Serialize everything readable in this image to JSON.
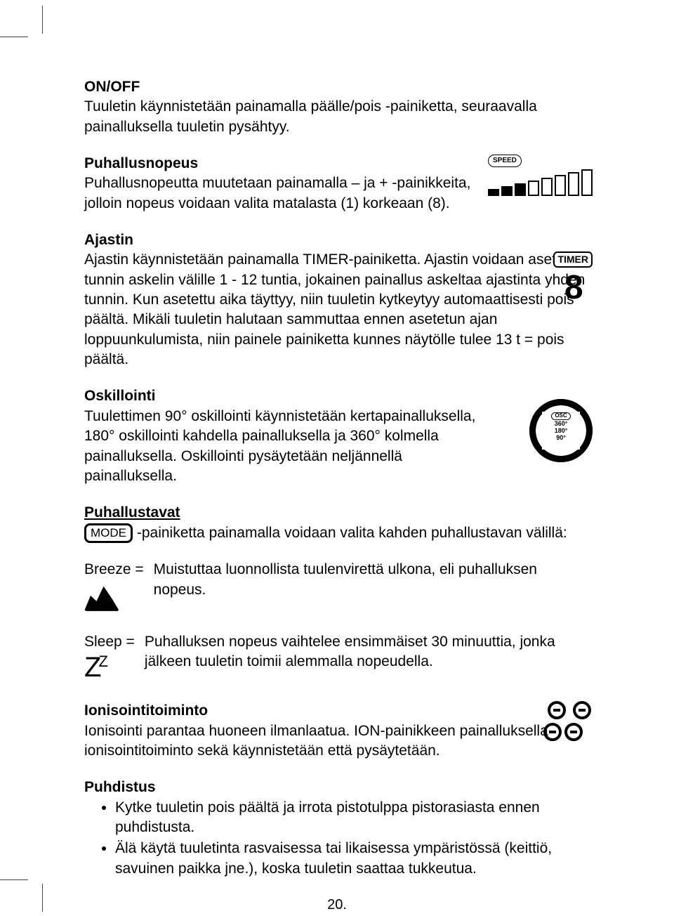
{
  "pageNumber": "20.",
  "sections": {
    "onoff": {
      "title": "ON/OFF",
      "body": "Tuuletin käynnistetään painamalla päälle/pois -painiketta, seuraavalla painalluksella tuuletin pysähtyy."
    },
    "speed": {
      "title": "Puhallusnopeus",
      "body": "Puhallusnopeutta muutetaan painamalla – ja + -painikkeita, jolloin nopeus voidaan valita matalasta (1) korkeaan (8).",
      "badge": "SPEED",
      "bars": {
        "count": 8,
        "filled": 3,
        "heights": [
          10,
          14,
          18,
          22,
          26,
          30,
          34,
          38
        ]
      }
    },
    "timer": {
      "title": "Ajastin",
      "body": "Ajastin käynnistetään painamalla TIMER-painiketta.  Ajastin voidaan asettaa tunnin askelin välille 1 - 12 tuntia, jokainen painallus askeltaa ajastinta yhden tunnin.  Kun asetettu aika täyttyy, niin tuuletin kytkeytyy automaattisesti pois päältä.  Mikäli tuuletin halutaan sammuttaa ennen asetetun ajan loppuunkulumista, niin painele painiketta kunnes näytölle tulee 13 t = pois päältä.",
      "badge": "TIMER",
      "digit": "8"
    },
    "osc": {
      "title": "Oskillointi",
      "body": "Tuulettimen 90° oskillointi käynnistetään kertapainalluksella, 180° oskillointi kahdella painalluksella ja 360° kolmella painalluksella. Oskillointi pysäytetään neljännellä painalluksella.",
      "badge": "OSC",
      "labels": [
        "360°",
        "180°",
        "90°"
      ]
    },
    "modes": {
      "title": "Puhallustavat",
      "badge": "MODE",
      "intro": "-painiketta painamalla voidaan valita kahden puhallustavan välillä:",
      "breeze": {
        "label": "Breeze =",
        "body": "Muistuttaa luonnollista tuulenvirettä ulkona, eli puhalluksen nopeus."
      },
      "sleep": {
        "label": "Sleep =",
        "body": "Puhalluksen nopeus vaihtelee ensimmäiset 30 minuuttia, jonka jälkeen tuuletin toimii alemmalla nopeudella.",
        "zBig": "Z",
        "zSmall": "Z"
      }
    },
    "ion": {
      "title": "Ionisointitoiminto",
      "body": "Ionisointi parantaa huoneen ilmanlaatua. ION-painikkeen painalluksella ionisointitoiminto sekä käynnistetään että pysäytetään."
    },
    "clean": {
      "title": "Puhdistus",
      "items": [
        "Kytke tuuletin pois päältä ja irrota pistotulppa pistorasiasta ennen puhdistusta.",
        "Älä käytä tuuletinta rasvaisessa tai likaisessa ympäristössä (keittiö, savuinen paikka jne.), koska tuuletin saattaa tukkeutua."
      ]
    }
  }
}
